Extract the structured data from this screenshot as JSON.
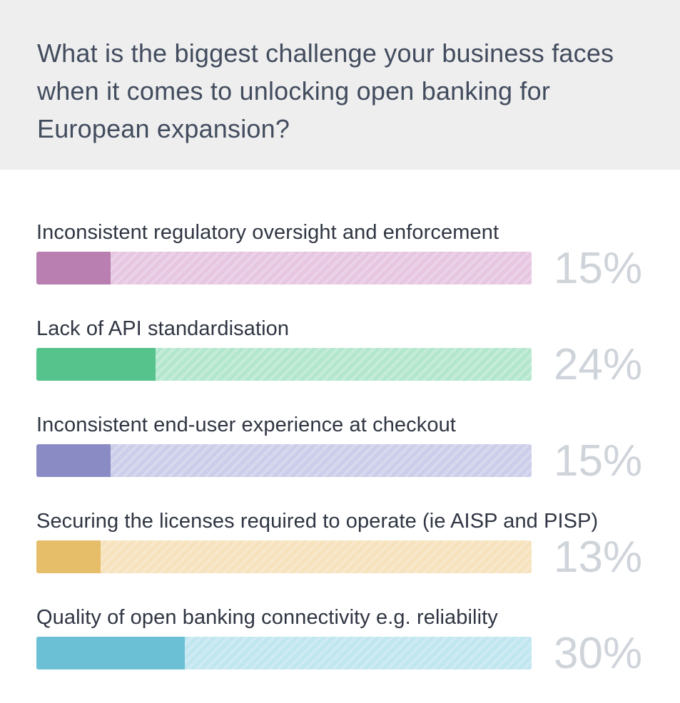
{
  "question": "What is the biggest challenge your business faces when it comes to unlocking open banking for European expansion?",
  "chart_data": {
    "type": "bar",
    "orientation": "horizontal",
    "title": "What is the biggest challenge your business faces when it comes to unlocking open banking for European expansion?",
    "xlim": [
      0,
      100
    ],
    "grid": false,
    "legend": "none",
    "categories": [
      "Inconsistent regulatory oversight and enforcement",
      "Lack of API standardisation",
      "Inconsistent end-user experience at checkout",
      "Securing the licenses required to operate (ie AISP and PISP)",
      "Quality of open banking connectivity e.g. reliability"
    ],
    "values": [
      15,
      24,
      15,
      13,
      30
    ],
    "value_labels": [
      "15%",
      "24%",
      "15%",
      "13%",
      "30%"
    ],
    "colors": [
      {
        "fill": "#b97fb0",
        "track": "#e6c6e1"
      },
      {
        "fill": "#55c38b",
        "track": "#b3e7cd"
      },
      {
        "fill": "#8a8bc5",
        "track": "#cccdea"
      },
      {
        "fill": "#e6be6a",
        "track": "#f6e2bc"
      },
      {
        "fill": "#6bc0d6",
        "track": "#c0e6f0"
      }
    ],
    "percent_color": "#cfd4da"
  }
}
